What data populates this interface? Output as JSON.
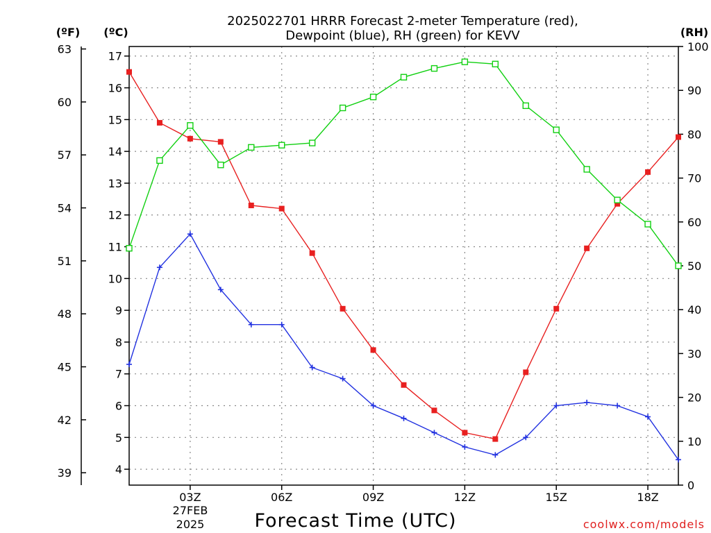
{
  "chart_data": {
    "type": "line",
    "title": [
      "2025022701 HRRR Forecast 2-meter Temperature (red),",
      "Dewpoint (blue), RH (green) for KEVV"
    ],
    "xlabel": "Forecast Time (UTC)",
    "x_labels": [
      "03Z",
      "06Z",
      "09Z",
      "12Z",
      "15Z",
      "18Z"
    ],
    "x_label_hours": [
      3,
      6,
      9,
      12,
      15,
      18
    ],
    "date_label": [
      "27FEB",
      "2025"
    ],
    "xlim": [
      1,
      19
    ],
    "units": {
      "left_f": "(ºF)",
      "left_c": "(ºC)",
      "right_rh": "(RH)"
    },
    "celsius_axis": {
      "ylim": [
        3.5,
        17.3
      ],
      "ticks": [
        4,
        5,
        6,
        7,
        8,
        9,
        10,
        11,
        12,
        13,
        14,
        15,
        16,
        17
      ]
    },
    "fahrenheit_axis": {
      "ticks": [
        39,
        42,
        45,
        48,
        51,
        54,
        57,
        60,
        63
      ]
    },
    "rh_axis": {
      "ylim": [
        0,
        100
      ],
      "ticks": [
        0,
        10,
        20,
        30,
        40,
        50,
        60,
        70,
        80,
        90,
        100
      ]
    },
    "series": [
      {
        "name": "Temperature",
        "color": "#e82020",
        "marker": "filled-square",
        "x": [
          1,
          2,
          3,
          4,
          5,
          6,
          7,
          8,
          9,
          10,
          11,
          12,
          13,
          14,
          15,
          16,
          17,
          18,
          19
        ],
        "values": [
          16.5,
          14.9,
          14.4,
          14.3,
          12.3,
          12.2,
          10.8,
          9.05,
          7.75,
          6.65,
          5.85,
          5.15,
          4.95,
          7.05,
          9.05,
          10.95,
          12.35,
          13.35,
          14.45
        ]
      },
      {
        "name": "Dewpoint",
        "color": "#2030e0",
        "marker": "plus",
        "x": [
          1,
          2,
          3,
          4,
          5,
          6,
          7,
          8,
          9,
          10,
          11,
          12,
          13,
          14,
          15,
          16,
          17,
          18,
          19
        ],
        "values": [
          7.3,
          10.35,
          11.4,
          9.65,
          8.55,
          8.55,
          7.2,
          6.85,
          6.0,
          5.6,
          5.15,
          4.7,
          4.45,
          5.0,
          6.0,
          6.1,
          6.0,
          5.65,
          4.3
        ]
      },
      {
        "name": "RH",
        "color": "#10d010",
        "marker": "open-square",
        "axis": "rh",
        "x": [
          1,
          2,
          3,
          4,
          5,
          6,
          7,
          8,
          9,
          10,
          11,
          12,
          13,
          14,
          15,
          16,
          17,
          18,
          19
        ],
        "values": [
          54,
          74,
          82,
          73,
          77,
          77.5,
          78,
          86,
          88.5,
          93,
          95,
          96.5,
          96,
          86.5,
          81,
          72,
          65,
          59.5,
          50
        ]
      }
    ],
    "grid": true
  },
  "credit": "coolwx.com/models"
}
